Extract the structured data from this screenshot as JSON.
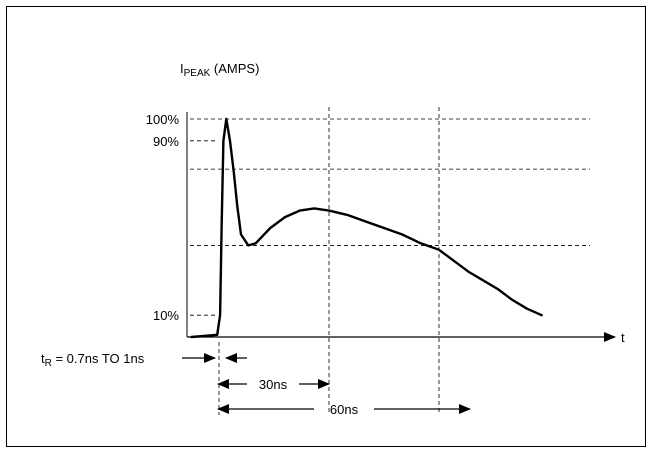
{
  "chart_data": {
    "type": "line",
    "title": "",
    "ylabel": {
      "main": "I",
      "sub": "PEAK",
      "rest": " (AMPS)"
    },
    "xlabel": "t",
    "x_unit": "ns",
    "y_unit": "% of I_PEAK",
    "y_ticks": [
      {
        "value": 100,
        "label": "100%"
      },
      {
        "value": 90,
        "label": "90%"
      },
      {
        "value": 10,
        "label": "10%"
      }
    ],
    "y_reference_lines": [
      100,
      77,
      42
    ],
    "x_reference_lines": [
      30,
      60
    ],
    "series": [
      {
        "x": [
          -7.5,
          -0.5,
          0.3,
          0.7,
          1.2,
          2,
          3,
          4,
          5,
          6,
          8,
          10,
          14,
          18,
          22,
          26,
          30,
          35,
          40,
          45,
          50,
          55,
          60,
          64,
          68,
          72,
          76,
          80,
          84,
          88
        ],
        "y": [
          0,
          1,
          10,
          50,
          90,
          100,
          90,
          76,
          60,
          47,
          42,
          43,
          50,
          55,
          58,
          59,
          58,
          56,
          53,
          50,
          47,
          43,
          40,
          35,
          30,
          26,
          22,
          17,
          13,
          10
        ]
      }
    ],
    "annotations": {
      "rise_time": {
        "main": "t",
        "sub": "R",
        "rest": " = 0.7ns TO 1ns"
      },
      "interval_30": "30ns",
      "interval_60": "60ns"
    },
    "grid": false,
    "legend": "none"
  }
}
